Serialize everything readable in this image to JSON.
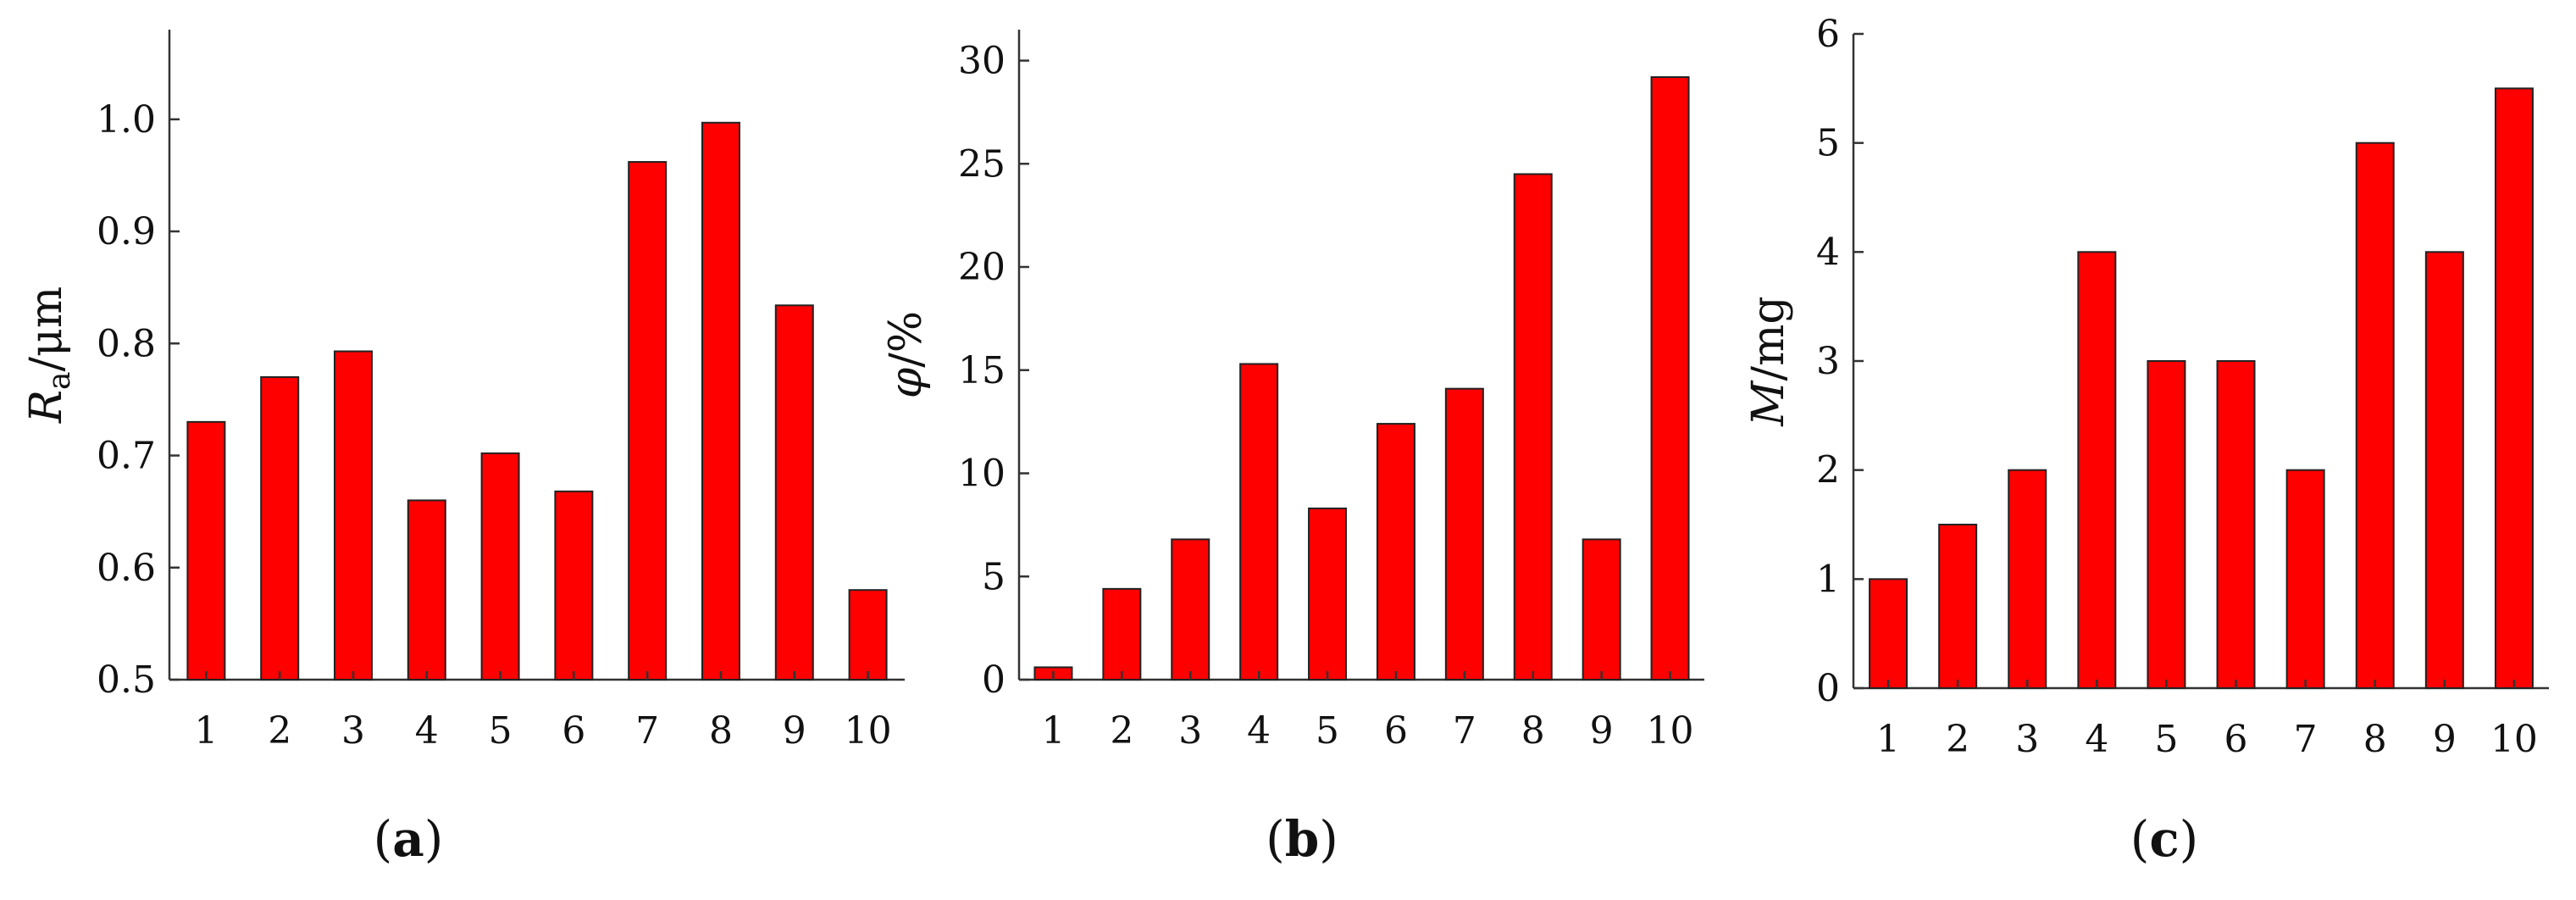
{
  "colors": {
    "bar": "#ff0000",
    "axis": "#333333",
    "text": "#111111"
  },
  "chart_data": [
    {
      "type": "bar",
      "panel": "a",
      "ylabel": {
        "main": "R",
        "sub": "a",
        "unit": "/μm"
      },
      "categories": [
        "1",
        "2",
        "3",
        "4",
        "5",
        "6",
        "7",
        "8",
        "9",
        "10"
      ],
      "values": [
        0.73,
        0.77,
        0.793,
        0.66,
        0.702,
        0.668,
        0.962,
        0.997,
        0.834,
        0.58
      ],
      "ylim": [
        0.5,
        1.08
      ],
      "yticks": [
        0.5,
        0.6,
        0.7,
        0.8,
        0.9,
        1.0
      ],
      "ytick_labels": [
        "0.5",
        "0.6",
        "0.7",
        "0.8",
        "0.9",
        "1.0"
      ],
      "grid": false
    },
    {
      "type": "bar",
      "panel": "b",
      "ylabel": {
        "main": "φ",
        "sub": "",
        "unit": "/%"
      },
      "categories": [
        "1",
        "2",
        "3",
        "4",
        "5",
        "6",
        "7",
        "8",
        "9",
        "10"
      ],
      "values": [
        0.6,
        4.4,
        6.8,
        15.3,
        8.3,
        12.4,
        14.1,
        24.5,
        6.8,
        29.2
      ],
      "ylim": [
        0,
        31.5
      ],
      "yticks": [
        0,
        5,
        10,
        15,
        20,
        25,
        30
      ],
      "ytick_labels": [
        "0",
        "5",
        "10",
        "15",
        "20",
        "25",
        "30"
      ],
      "grid": false
    },
    {
      "type": "bar",
      "panel": "c",
      "ylabel": {
        "main": "M",
        "sub": "",
        "unit": "/mg"
      },
      "categories": [
        "1",
        "2",
        "3",
        "4",
        "5",
        "6",
        "7",
        "8",
        "9",
        "10"
      ],
      "values": [
        1,
        1.5,
        2,
        4,
        3,
        3,
        2,
        5,
        4,
        5.5
      ],
      "ylim": [
        0,
        6
      ],
      "yticks": [
        0,
        1,
        2,
        3,
        4,
        5,
        6
      ],
      "ytick_labels": [
        "0",
        "1",
        "2",
        "3",
        "4",
        "5",
        "6"
      ],
      "grid": false
    }
  ]
}
